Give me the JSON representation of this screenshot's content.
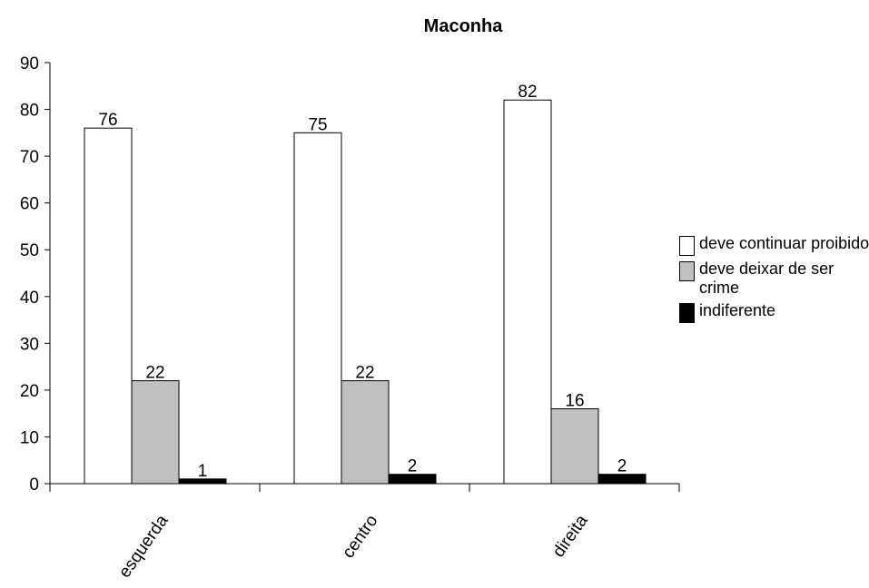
{
  "chart_data": {
    "type": "bar",
    "title": "Maconha",
    "categories": [
      "esquerda",
      "centro",
      "direita"
    ],
    "series": [
      {
        "name": "deve continuar proibido",
        "values": [
          76,
          75,
          82
        ],
        "color": "#ffffff"
      },
      {
        "name": "deve deixar de ser crime",
        "values": [
          22,
          22,
          16
        ],
        "color": "#c0c0c0"
      },
      {
        "name": "indiferente",
        "values": [
          1,
          2,
          2
        ],
        "color": "#000000"
      }
    ],
    "ylim": [
      0,
      90
    ],
    "yticks": [
      0,
      10,
      20,
      30,
      40,
      50,
      60,
      70,
      80,
      90
    ],
    "grid": false,
    "legend_position": "right",
    "xlabel": "",
    "ylabel": ""
  }
}
